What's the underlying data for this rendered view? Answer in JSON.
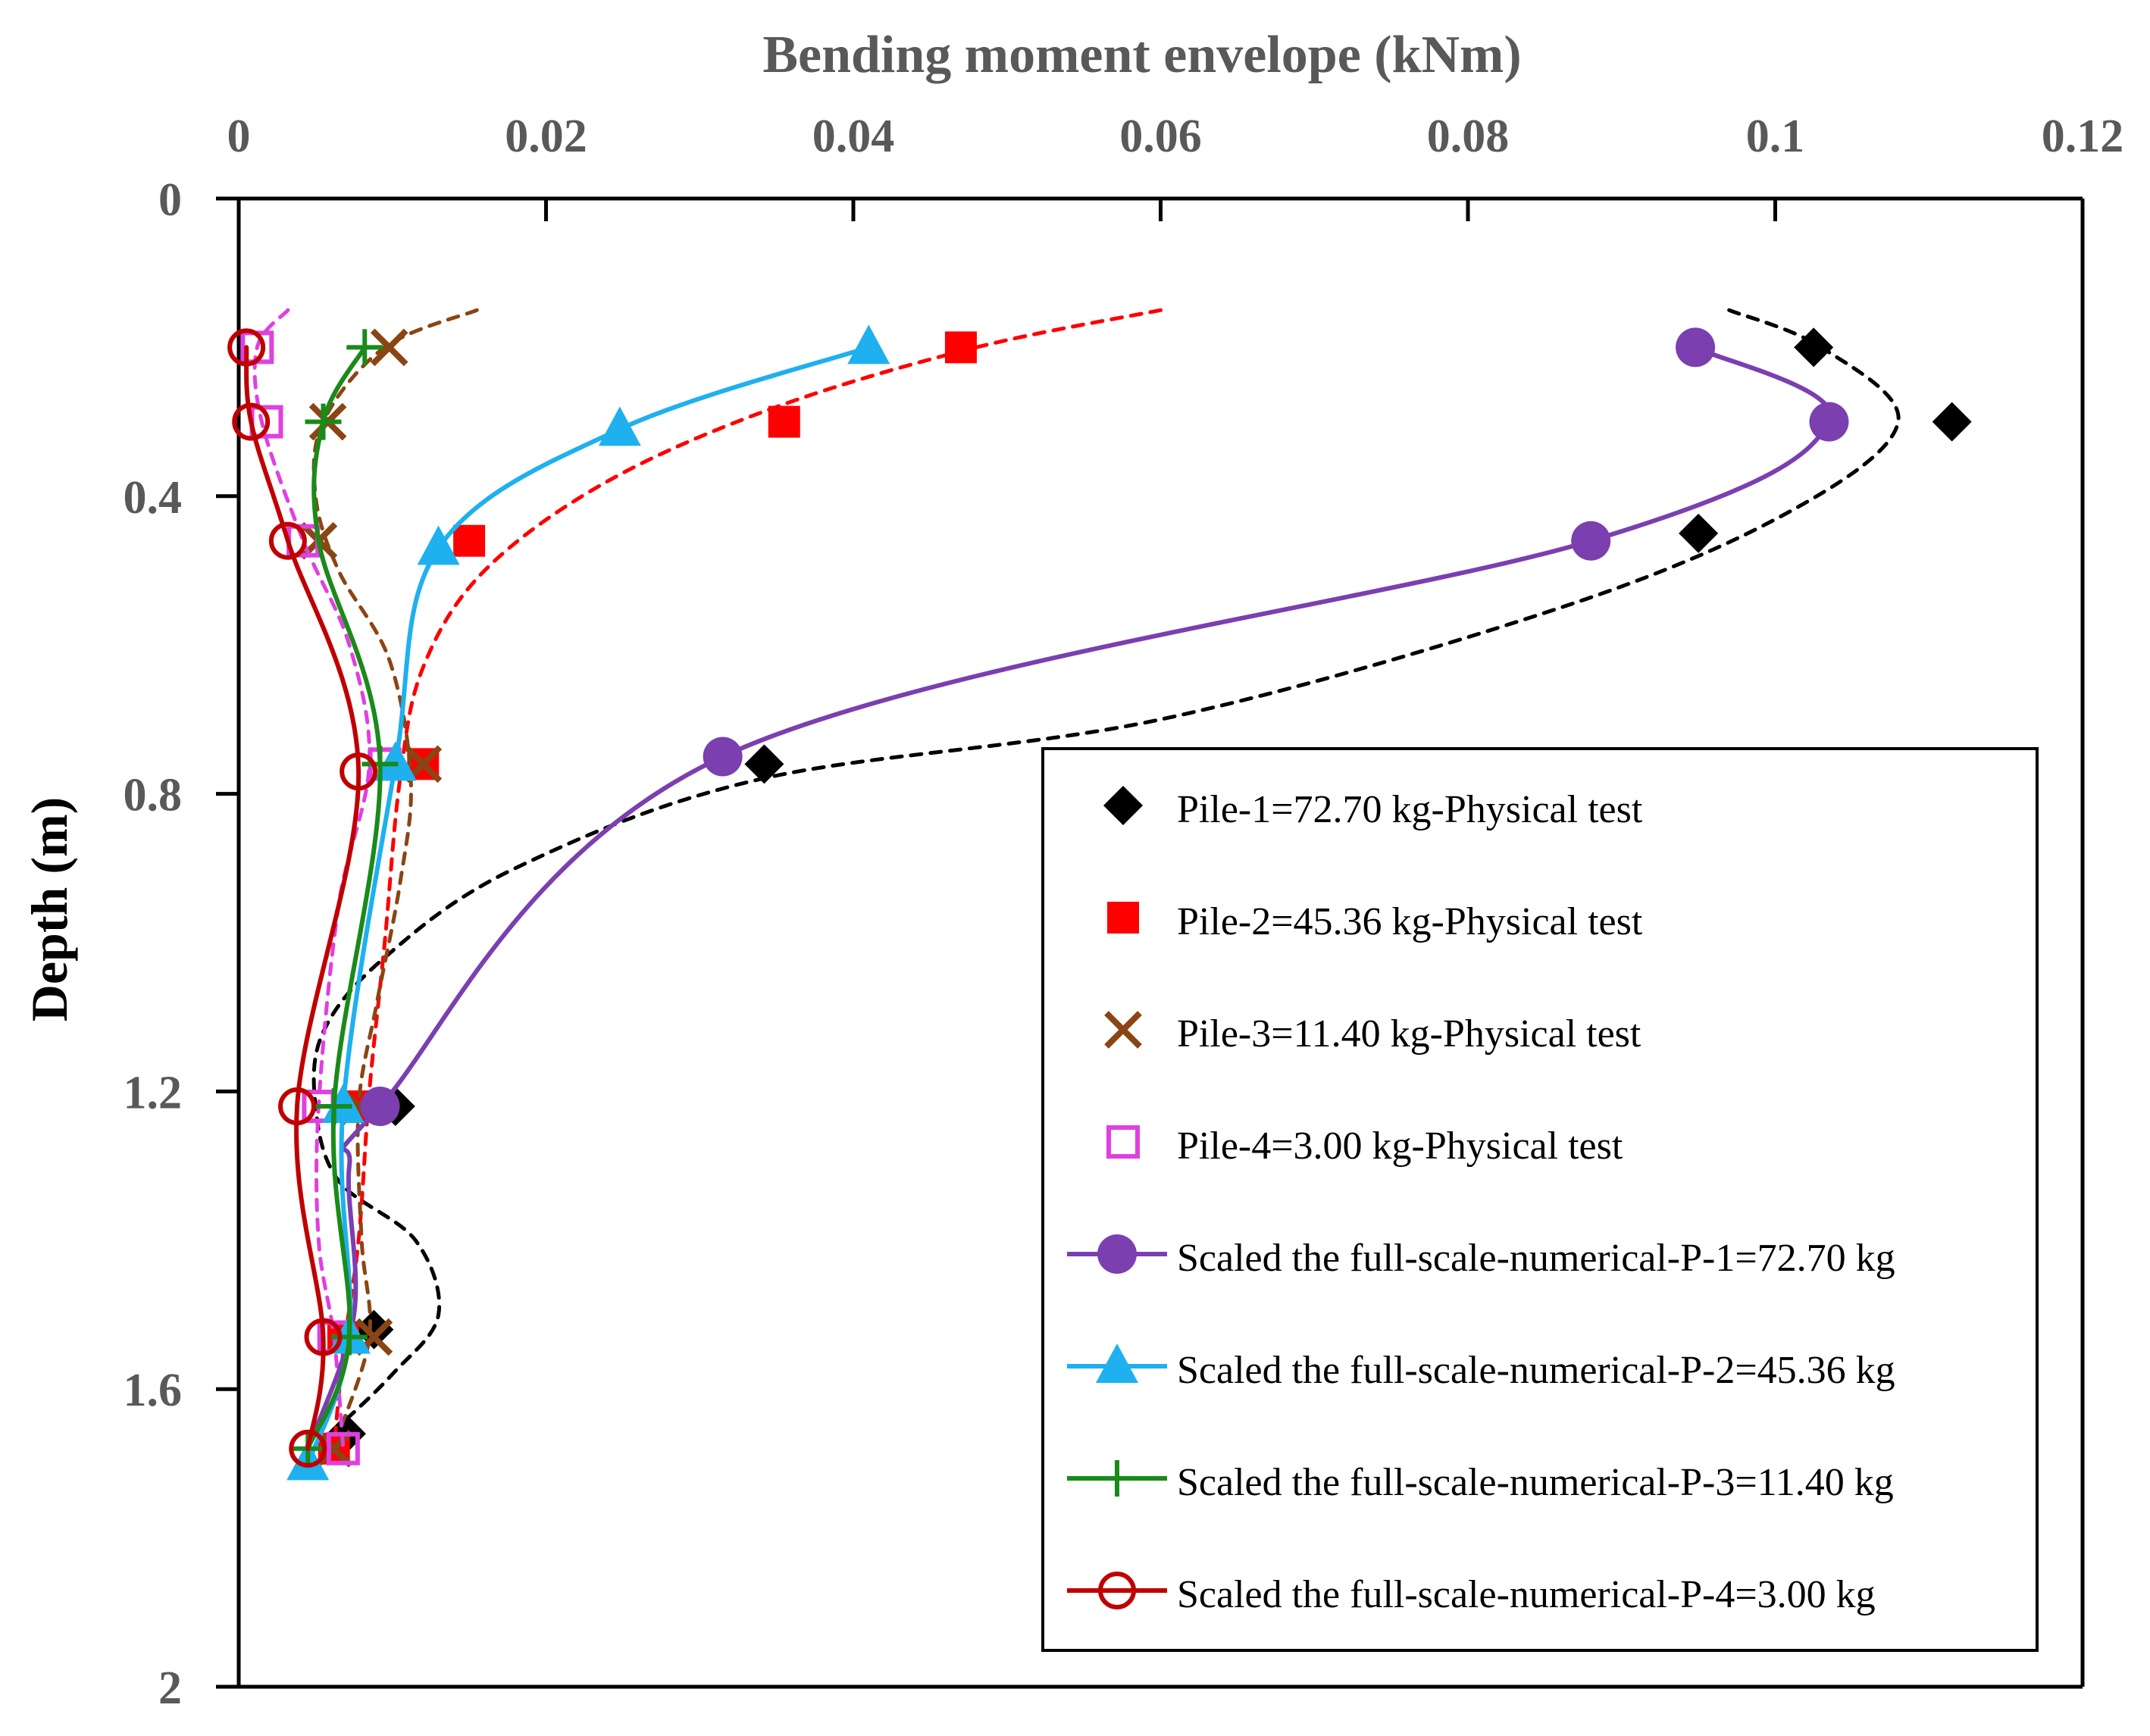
{
  "colors": {
    "pile1": "#000000",
    "pile2": "#ff0000",
    "pile3": "#8b4513",
    "pile4": "#e040e0",
    "num1": "#7b3fb0",
    "num2": "#1fb0ef",
    "num3": "#1a8a1a",
    "num4": "#c00000",
    "axis": "#000000",
    "text": "#595959"
  },
  "chart_data": {
    "type": "scatter",
    "title": "Bending moment envelope (kNm)",
    "xlabel": "Bending moment envelope (kNm)",
    "ylabel": "Depth (m)",
    "x_axis_position": "top",
    "y_axis_inverted": true,
    "xlim": [
      0,
      0.12
    ],
    "ylim": [
      0,
      2
    ],
    "x_ticks": [
      "0",
      "0.02",
      "0.04",
      "0.06",
      "0.08",
      "0.1",
      "0.12"
    ],
    "x_tick_values": [
      0,
      0.02,
      0.04,
      0.06,
      0.08,
      0.1,
      0.12
    ],
    "y_ticks": [
      "0",
      "0.4",
      "0.8",
      "1.2",
      "1.6",
      "2"
    ],
    "y_tick_values": [
      0,
      0.4,
      0.8,
      1.2,
      1.6,
      2.0
    ],
    "legend_position": "bottom-right",
    "series": [
      {
        "key": "pile1",
        "name": "Pile-1=72.70 kg-Physical test",
        "marker": "diamond",
        "points": [
          [
            0.1025,
            0.2
          ],
          [
            0.1115,
            0.3
          ],
          [
            0.095,
            0.45
          ],
          [
            0.0342,
            0.76
          ],
          [
            0.0102,
            1.22
          ],
          [
            0.0088,
            1.52
          ],
          [
            0.007,
            1.66
          ]
        ],
        "trend": [
          [
            0.097,
            0.15
          ],
          [
            0.103,
            0.2
          ],
          [
            0.108,
            0.3
          ],
          [
            0.101,
            0.42
          ],
          [
            0.086,
            0.55
          ],
          [
            0.06,
            0.7
          ],
          [
            0.034,
            0.78
          ],
          [
            0.018,
            0.9
          ],
          [
            0.0095,
            1.02
          ],
          [
            0.0055,
            1.12
          ],
          [
            0.005,
            1.22
          ],
          [
            0.0065,
            1.32
          ],
          [
            0.0115,
            1.4
          ],
          [
            0.013,
            1.5
          ],
          [
            0.01,
            1.58
          ],
          [
            0.006,
            1.66
          ]
        ]
      },
      {
        "key": "pile2",
        "name": "Pile-2=45.36 kg-Physical test",
        "marker": "square",
        "points": [
          [
            0.047,
            0.2
          ],
          [
            0.0355,
            0.3
          ],
          [
            0.015,
            0.46
          ],
          [
            0.012,
            0.76
          ],
          [
            0.008,
            1.22
          ],
          [
            0.0068,
            1.53
          ],
          [
            0.0062,
            1.68
          ]
        ],
        "trend": [
          [
            0.06,
            0.15
          ],
          [
            0.048,
            0.2
          ],
          [
            0.035,
            0.28
          ],
          [
            0.024,
            0.38
          ],
          [
            0.016,
            0.5
          ],
          [
            0.012,
            0.63
          ],
          [
            0.0105,
            0.78
          ],
          [
            0.0095,
            1.0
          ],
          [
            0.0085,
            1.2
          ],
          [
            0.0078,
            1.4
          ],
          [
            0.0068,
            1.55
          ],
          [
            0.0062,
            1.68
          ]
        ]
      },
      {
        "key": "pile3",
        "name": "Pile-3=11.40 kg-Physical test",
        "marker": "x",
        "points": [
          [
            0.0098,
            0.2
          ],
          [
            0.0058,
            0.3
          ],
          [
            0.0052,
            0.46
          ],
          [
            0.012,
            0.76
          ],
          [
            0.0078,
            1.22
          ],
          [
            0.0088,
            1.53
          ],
          [
            0.0062,
            1.68
          ]
        ],
        "trend": [
          [
            0.0155,
            0.15
          ],
          [
            0.0095,
            0.2
          ],
          [
            0.0055,
            0.3
          ],
          [
            0.005,
            0.4
          ],
          [
            0.0065,
            0.5
          ],
          [
            0.0098,
            0.62
          ],
          [
            0.0112,
            0.78
          ],
          [
            0.0105,
            0.92
          ],
          [
            0.009,
            1.08
          ],
          [
            0.0078,
            1.22
          ],
          [
            0.008,
            1.4
          ],
          [
            0.0085,
            1.53
          ],
          [
            0.0065,
            1.66
          ]
        ]
      },
      {
        "key": "pile4",
        "name": "Pile-4=3.00 kg-Physical test",
        "marker": "open-square",
        "points": [
          [
            0.0012,
            0.2
          ],
          [
            0.0018,
            0.3
          ],
          [
            0.0042,
            0.46
          ],
          [
            0.0095,
            0.76
          ],
          [
            0.0052,
            1.22
          ],
          [
            0.0062,
            1.53
          ],
          [
            0.0068,
            1.68
          ]
        ],
        "trend": [
          [
            0.0032,
            0.15
          ],
          [
            0.0012,
            0.2
          ],
          [
            0.0015,
            0.3
          ],
          [
            0.0042,
            0.46
          ],
          [
            0.0072,
            0.6
          ],
          [
            0.0085,
            0.76
          ],
          [
            0.0065,
            0.95
          ],
          [
            0.0052,
            1.22
          ],
          [
            0.0052,
            1.4
          ],
          [
            0.0062,
            1.53
          ],
          [
            0.0068,
            1.68
          ]
        ]
      },
      {
        "key": "num1",
        "name": "Scaled the full-scale-numerical-P-1=72.70 kg",
        "marker": "circle",
        "points": [
          [
            0.0948,
            0.2
          ],
          [
            0.1035,
            0.3
          ],
          [
            0.088,
            0.46
          ],
          [
            0.0315,
            0.75
          ],
          [
            0.0092,
            1.22
          ]
        ],
        "trend": [
          [
            0.0948,
            0.2
          ],
          [
            0.1035,
            0.3
          ],
          [
            0.088,
            0.46
          ],
          [
            0.0315,
            0.75
          ],
          [
            0.0092,
            1.22
          ],
          [
            0.0072,
            1.3
          ],
          [
            0.0075,
            1.5
          ],
          [
            0.0045,
            1.68
          ]
        ]
      },
      {
        "key": "num2",
        "name": "Scaled the full-scale-numerical-P-2=45.36 kg",
        "marker": "triangle",
        "points": [
          [
            0.041,
            0.2
          ],
          [
            0.0248,
            0.31
          ],
          [
            0.013,
            0.47
          ],
          [
            0.0102,
            0.76
          ],
          [
            0.0068,
            1.22
          ],
          [
            0.0072,
            1.53
          ],
          [
            0.0045,
            1.7
          ]
        ],
        "trend": [
          [
            0.041,
            0.2
          ],
          [
            0.0248,
            0.31
          ],
          [
            0.013,
            0.47
          ],
          [
            0.0102,
            0.76
          ],
          [
            0.0068,
            1.22
          ],
          [
            0.0072,
            1.53
          ],
          [
            0.0045,
            1.7
          ]
        ]
      },
      {
        "key": "num3",
        "name": "Scaled the full-scale-numerical-P-3=11.40 kg",
        "marker": "plus",
        "points": [
          [
            0.0082,
            0.2
          ],
          [
            0.0055,
            0.3
          ],
          [
            0.0092,
            0.76
          ],
          [
            0.0062,
            1.22
          ],
          [
            0.0072,
            1.53
          ],
          [
            0.0045,
            1.68
          ]
        ],
        "trend": [
          [
            0.0082,
            0.2
          ],
          [
            0.0055,
            0.3
          ],
          [
            0.0052,
            0.46
          ],
          [
            0.0092,
            0.76
          ],
          [
            0.0062,
            1.22
          ],
          [
            0.0072,
            1.53
          ],
          [
            0.0045,
            1.68
          ]
        ]
      },
      {
        "key": "num4",
        "name": "Scaled the full-scale-numerical-P-4=3.00 kg",
        "marker": "open-circle",
        "points": [
          [
            0.0005,
            0.2
          ],
          [
            0.0008,
            0.3
          ],
          [
            0.0032,
            0.46
          ],
          [
            0.0078,
            0.77
          ],
          [
            0.0038,
            1.22
          ],
          [
            0.0055,
            1.53
          ],
          [
            0.0045,
            1.68
          ]
        ],
        "trend": [
          [
            0.0005,
            0.2
          ],
          [
            0.0008,
            0.3
          ],
          [
            0.0032,
            0.46
          ],
          [
            0.0078,
            0.77
          ],
          [
            0.0038,
            1.22
          ],
          [
            0.0055,
            1.53
          ],
          [
            0.0045,
            1.68
          ]
        ]
      }
    ]
  }
}
